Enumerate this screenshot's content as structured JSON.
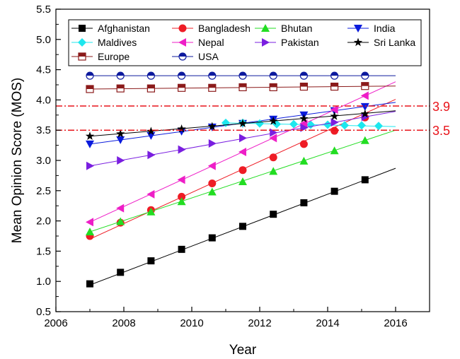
{
  "chart_data": {
    "type": "line",
    "xlabel": "Year",
    "ylabel": "Mean Opinion Score (MOS)",
    "xlim": [
      2006,
      2017
    ],
    "ylim": [
      0.5,
      5.5
    ],
    "xticks": [
      2006,
      2008,
      2010,
      2012,
      2014,
      2016
    ],
    "xtick_labels": [
      "2006",
      "2008",
      "2010",
      "2012",
      "2014",
      "2016"
    ],
    "yticks": [
      0.5,
      1.0,
      1.5,
      2.0,
      2.5,
      3.0,
      3.5,
      4.0,
      4.5,
      5.0,
      5.5
    ],
    "ytick_labels": [
      "0.5",
      "1.0",
      "1.5",
      "2.0",
      "2.5",
      "3.0",
      "3.5",
      "4.0",
      "4.5",
      "5.0",
      "5.5"
    ],
    "legend_position": "top",
    "grid": false,
    "reference_lines": [
      {
        "value": 3.9,
        "label": "3.9",
        "color": "#e8141a",
        "style": "dash-dot"
      },
      {
        "value": 3.5,
        "label": "3.5",
        "color": "#e8141a",
        "style": "dash-dot"
      }
    ],
    "series": [
      {
        "name": "Afghanistan",
        "color": "#000000",
        "marker": "square",
        "fill": "#000000",
        "line": [
          [
            2007,
            0.94
          ],
          [
            2016,
            2.87
          ]
        ],
        "x": [
          2007,
          2007.9,
          2008.8,
          2009.7,
          2010.6,
          2011.5,
          2012.4,
          2013.3,
          2014.2,
          2015.1
        ],
        "values": [
          0.96,
          1.15,
          1.34,
          1.53,
          1.72,
          1.91,
          2.11,
          2.3,
          2.49,
          2.68
        ]
      },
      {
        "name": "Bangladesh",
        "color": "#ee1c25",
        "marker": "circle",
        "fill": "#ee1c25",
        "line": [
          [
            2007,
            1.7
          ],
          [
            2016,
            4.01
          ]
        ],
        "x": [
          2007,
          2007.9,
          2008.8,
          2009.7,
          2010.6,
          2011.5,
          2012.4,
          2013.3,
          2014.2,
          2015.1
        ],
        "values": [
          1.75,
          1.97,
          2.18,
          2.4,
          2.62,
          2.84,
          3.05,
          3.27,
          3.49,
          3.71
        ]
      },
      {
        "name": "Bhutan",
        "color": "#22dd22",
        "marker": "triangle-up",
        "fill": "#22dd22",
        "line": [
          [
            2007,
            1.82
          ],
          [
            2016,
            3.5
          ]
        ],
        "x": [
          2007,
          2007.9,
          2008.8,
          2009.7,
          2010.6,
          2011.5,
          2012.4,
          2013.3,
          2014.2,
          2015.1
        ],
        "values": [
          1.82,
          1.99,
          2.15,
          2.32,
          2.48,
          2.65,
          2.82,
          2.99,
          3.16,
          3.33
        ]
      },
      {
        "name": "India",
        "color": "#0a1bdc",
        "marker": "triangle-down",
        "fill": "#0a1bdc",
        "line": [
          [
            2007,
            3.27
          ],
          [
            2016,
            3.96
          ]
        ],
        "x": [
          2007,
          2007.9,
          2008.8,
          2009.7,
          2010.6,
          2011.5,
          2012.4,
          2013.3,
          2014.2,
          2015.1
        ],
        "values": [
          3.27,
          3.34,
          3.41,
          3.48,
          3.55,
          3.61,
          3.68,
          3.75,
          3.82,
          3.89
        ]
      },
      {
        "name": "Maldives",
        "color": "#1de7ee",
        "marker": "diamond",
        "fill": "#1de7ee",
        "line": [
          [
            2011,
            3.62
          ],
          [
            2016,
            3.56
          ]
        ],
        "x": [
          2011,
          2011.5,
          2012,
          2012.5,
          2013,
          2013.5,
          2014,
          2014.5,
          2015,
          2015.5
        ],
        "values": [
          3.62,
          3.62,
          3.61,
          3.6,
          3.6,
          3.59,
          3.59,
          3.58,
          3.58,
          3.57
        ]
      },
      {
        "name": "Nepal",
        "color": "#ee1ec7",
        "marker": "triangle-left",
        "fill": "#ee1ec7",
        "line": [
          [
            2007,
            1.98
          ],
          [
            2016,
            4.3
          ]
        ],
        "x": [
          2007,
          2007.9,
          2008.8,
          2009.7,
          2010.6,
          2011.5,
          2012.4,
          2013.3,
          2014.2,
          2015.1
        ],
        "values": [
          1.98,
          2.21,
          2.44,
          2.68,
          2.91,
          3.14,
          3.37,
          3.61,
          3.84,
          4.07
        ]
      },
      {
        "name": "Pakistan",
        "color": "#7a1ee0",
        "marker": "triangle-right",
        "fill": "#7a1ee0",
        "line": [
          [
            2007,
            2.91
          ],
          [
            2016,
            3.81
          ]
        ],
        "x": [
          2007,
          2007.9,
          2008.8,
          2009.7,
          2010.6,
          2011.5,
          2012.4,
          2013.3,
          2014.2,
          2015.1
        ],
        "values": [
          2.91,
          3.0,
          3.09,
          3.18,
          3.28,
          3.37,
          3.46,
          3.54,
          3.63,
          3.72
        ]
      },
      {
        "name": "Sri Lanka",
        "color": "#000000",
        "marker": "star",
        "fill": "#000000",
        "line": [
          [
            2007,
            3.4
          ],
          [
            2016,
            3.82
          ]
        ],
        "x": [
          2007,
          2007.9,
          2008.8,
          2009.7,
          2010.6,
          2011.5,
          2012.4,
          2013.3,
          2014.2,
          2015.1
        ],
        "values": [
          3.4,
          3.44,
          3.48,
          3.52,
          3.56,
          3.61,
          3.65,
          3.69,
          3.73,
          3.77
        ]
      },
      {
        "name": "Europe",
        "color": "#8b1a1a",
        "marker": "square-half",
        "fill": "#8b1a1a",
        "line": [
          [
            2007,
            4.18
          ],
          [
            2016,
            4.23
          ]
        ],
        "x": [
          2007,
          2007.9,
          2008.8,
          2009.7,
          2010.6,
          2011.5,
          2012.4,
          2013.3,
          2014.2,
          2015.1
        ],
        "values": [
          4.18,
          4.19,
          4.19,
          4.2,
          4.2,
          4.21,
          4.21,
          4.22,
          4.22,
          4.23
        ]
      },
      {
        "name": "USA",
        "color": "#0d1a9e",
        "marker": "circle-half",
        "fill": "#0d1a9e",
        "line": [
          [
            2007,
            4.4
          ],
          [
            2016,
            4.4
          ]
        ],
        "x": [
          2007,
          2007.9,
          2008.8,
          2009.7,
          2010.6,
          2011.5,
          2012.4,
          2013.3,
          2014.2,
          2015.1
        ],
        "values": [
          4.4,
          4.4,
          4.4,
          4.4,
          4.4,
          4.4,
          4.4,
          4.4,
          4.4,
          4.4
        ]
      }
    ]
  }
}
